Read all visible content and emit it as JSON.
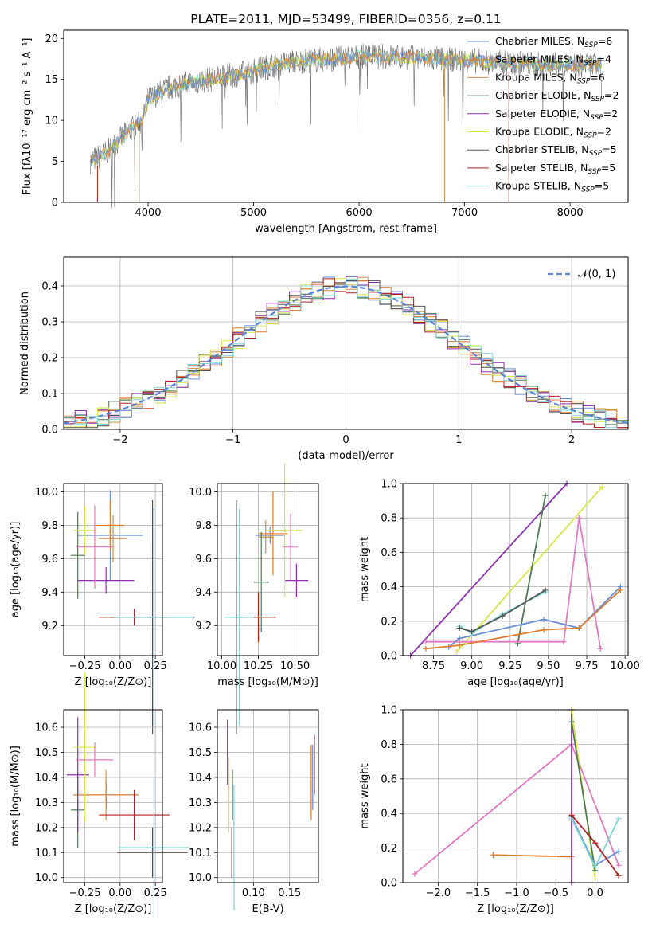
{
  "colors": {
    "chabrier_miles": "#6a8fd6",
    "salpeter_miles": "#e07b2a",
    "kroupa_miles": "#d08f45",
    "chabrier_elodie": "#4f7a55",
    "salpeter_elodie": "#8b2fb0",
    "kroupa_elodie": "#d6e84a",
    "chabrier_stelib": "#555555",
    "salpeter_stelib": "#b22222",
    "kroupa_stelib": "#7fd6d6",
    "pink": "#e377c2",
    "grid": "#b0b0b0",
    "normal_dash": "#5b84d4"
  },
  "chart_data": [
    {
      "id": "spectrum",
      "type": "line",
      "title": "PLATE=2011, MJD=53499, FIBERID=0356, z=0.11",
      "xlabel": "wavelength [Angstrom, rest frame]",
      "ylabel": "Flux [fλ10⁻¹⁷ erg cm⁻² s⁻¹ A⁻¹]",
      "xlim": [
        3200,
        8550
      ],
      "ylim": [
        0,
        21
      ],
      "xticks": [
        "4000",
        "5000",
        "6000",
        "7000",
        "8000"
      ],
      "yticks": [
        "0",
        "5",
        "10",
        "15",
        "20"
      ],
      "grid": false,
      "legend_position": "top-right",
      "legend": [
        "Chabrier MILES, N_SSP=6",
        "Salpeter MILES, N_SSP=4",
        "Kroupa MILES, N_SSP=6",
        "Chabrier ELODIE, N_SSP=2",
        "Salpeter ELODIE, N_SSP=2",
        "Kroupa ELODIE, N_SSP=2",
        "Chabrier STELIB, N_SSP=5",
        "Salpeter STELIB, N_SSP=5",
        "Kroupa STELIB, N_SSP=5"
      ],
      "continuum": {
        "x": [
          3450,
          3600,
          3800,
          3950,
          4000,
          4200,
          4400,
          4600,
          4800,
          5000,
          5200,
          5500,
          5800,
          6000,
          6300,
          6600,
          7000,
          7400,
          7800,
          8300
        ],
        "y": [
          5,
          6,
          8.5,
          10,
          12.5,
          14,
          14.6,
          15,
          15.5,
          16,
          16.8,
          17.3,
          17.5,
          17.8,
          17.8,
          17.6,
          17.3,
          17.0,
          16.8,
          16.7
        ]
      }
    },
    {
      "id": "residuals",
      "type": "line",
      "xlabel": "(data-model)/error",
      "ylabel": "Normed distribution",
      "xlim": [
        -2.5,
        2.5
      ],
      "ylim": [
        0,
        0.48
      ],
      "xticks": [
        "−2",
        "−1",
        "0",
        "1",
        "2"
      ],
      "yticks": [
        "0.0",
        "0.1",
        "0.2",
        "0.3",
        "0.4"
      ],
      "grid": true,
      "legend": "𝒩(0, 1)",
      "legend_position": "top-right"
    },
    {
      "id": "z_age",
      "type": "scatter",
      "xlabel": "Z [log₁₀(Z/Z⊙)]",
      "ylabel": "age  [log₁₀(age/yr)]",
      "xlim": [
        -0.4,
        0.3
      ],
      "ylim": [
        9.02,
        10.05
      ],
      "xticks": [
        "−0.25",
        "0.00",
        "0.25"
      ],
      "yticks": [
        "9.2",
        "9.4",
        "9.6",
        "9.8",
        "10.0"
      ],
      "grid": true,
      "series": [
        {
          "x": -0.07,
          "y": 9.74,
          "xerr": 0.23,
          "yerr": 0.27,
          "color_key": "chabrier_miles"
        },
        {
          "x": -0.07,
          "y": 9.8,
          "xerr": 0.1,
          "yerr": 0.15,
          "color_key": "salpeter_miles"
        },
        {
          "x": -0.05,
          "y": 9.72,
          "xerr": 0.1,
          "yerr": 0.14,
          "color_key": "kroupa_miles"
        },
        {
          "x": -0.3,
          "y": 9.62,
          "xerr": 0.05,
          "yerr": 0.26,
          "color_key": "chabrier_elodie"
        },
        {
          "x": -0.1,
          "y": 9.47,
          "xerr": 0.2,
          "yerr": 0.08,
          "color_key": "salpeter_elodie"
        },
        {
          "x": -0.25,
          "y": 9.77,
          "xerr": 0.08,
          "yerr": 0.15,
          "color_key": "kroupa_elodie"
        },
        {
          "x": 0.23,
          "y": 9.25,
          "xerr": 0.3,
          "yerr": 0.7,
          "color_key": "chabrier_stelib"
        },
        {
          "x": 0.1,
          "y": 9.25,
          "xerr": 0.25,
          "yerr": 0.05,
          "color_key": "salpeter_stelib"
        },
        {
          "x": 0.24,
          "y": 9.25,
          "xerr": 0.28,
          "yerr": 0.65,
          "color_key": "kroupa_stelib"
        },
        {
          "x": -0.18,
          "y": 9.67,
          "xerr": 0.13,
          "yerr": 0.25,
          "color_key": "pink"
        }
      ]
    },
    {
      "id": "mass_age",
      "type": "scatter",
      "xlabel": "mass [log₁₀(M/M⊙)]",
      "ylabel": "",
      "xlim": [
        9.97,
        10.66
      ],
      "ylim": [
        9.02,
        10.05
      ],
      "xticks": [
        "10.00",
        "10.25",
        "10.50"
      ],
      "yticks": [
        "9.2",
        "9.4",
        "9.6",
        "9.8",
        "10.0"
      ],
      "grid": true,
      "series": [
        {
          "x": 10.33,
          "y": 9.74,
          "xerr": 0.1,
          "yerr": 0.05,
          "color_key": "chabrier_miles"
        },
        {
          "x": 10.35,
          "y": 9.75,
          "xerr": 0.1,
          "yerr": 0.25,
          "color_key": "salpeter_miles"
        },
        {
          "x": 10.3,
          "y": 9.73,
          "xerr": 0.05,
          "yerr": 0.1,
          "color_key": "kroupa_miles"
        },
        {
          "x": 10.27,
          "y": 9.46,
          "xerr": 0.05,
          "yerr": 0.3,
          "color_key": "chabrier_elodie"
        },
        {
          "x": 10.51,
          "y": 9.47,
          "xerr": 0.08,
          "yerr": 0.1,
          "color_key": "salpeter_elodie"
        },
        {
          "x": 10.43,
          "y": 9.77,
          "xerr": 0.12,
          "yerr": 0.4,
          "color_key": "kroupa_elodie"
        },
        {
          "x": 10.1,
          "y": 9.25,
          "xerr": 0.05,
          "yerr": 0.7,
          "color_key": "chabrier_stelib"
        },
        {
          "x": 10.25,
          "y": 9.25,
          "xerr": 0.12,
          "yerr": 0.15,
          "color_key": "salpeter_stelib"
        },
        {
          "x": 10.12,
          "y": 9.25,
          "xerr": 0.1,
          "yerr": 0.65,
          "color_key": "kroupa_stelib"
        },
        {
          "x": 10.47,
          "y": 9.67,
          "xerr": 0.05,
          "yerr": 0.2,
          "color_key": "pink"
        }
      ]
    },
    {
      "id": "age_weight",
      "type": "line",
      "xlabel": "age  [log₁₀(age/yr)]",
      "ylabel": "mass weight",
      "xlim": [
        8.55,
        10.02
      ],
      "ylim": [
        0,
        1
      ],
      "xticks": [
        "8.75",
        "9.00",
        "9.25",
        "9.50",
        "9.75",
        "10.00"
      ],
      "yticks": [
        "0.0",
        "0.2",
        "0.4",
        "0.6",
        "0.8",
        "1.0"
      ],
      "grid": true,
      "series": [
        {
          "color_key": "salpeter_elodie",
          "x": [
            8.6,
            9.62
          ],
          "y": [
            0.0,
            1.0
          ]
        },
        {
          "color_key": "kroupa_elodie",
          "x": [
            8.9,
            9.85
          ],
          "y": [
            0.02,
            0.98
          ]
        },
        {
          "color_key": "chabrier_elodie",
          "x": [
            9.3,
            9.48
          ],
          "y": [
            0.07,
            0.93
          ]
        },
        {
          "color_key": "pink",
          "x": [
            8.7,
            9.6,
            9.7,
            9.84
          ],
          "y": [
            0.08,
            0.08,
            0.8,
            0.04
          ]
        },
        {
          "color_key": "chabrier_miles",
          "x": [
            8.85,
            8.92,
            9.47,
            9.7,
            9.97
          ],
          "y": [
            0.05,
            0.1,
            0.21,
            0.16,
            0.4
          ]
        },
        {
          "color_key": "salpeter_miles",
          "x": [
            8.7,
            8.92,
            9.47,
            9.7,
            9.97
          ],
          "y": [
            0.04,
            0.06,
            0.15,
            0.16,
            0.38
          ]
        },
        {
          "color_key": "kroupa_stelib",
          "x": [
            8.92,
            9.0,
            9.2,
            9.48
          ],
          "y": [
            0.17,
            0.13,
            0.24,
            0.37
          ]
        },
        {
          "color_key": "chabrier_stelib",
          "x": [
            8.92,
            9.0,
            9.2,
            9.48
          ],
          "y": [
            0.16,
            0.14,
            0.23,
            0.38
          ]
        }
      ]
    },
    {
      "id": "z_mass",
      "type": "scatter",
      "xlabel": "Z [log₁₀(Z/Z⊙)]",
      "ylabel": "mass [log₁₀(M/M⊙)]",
      "xlim": [
        -0.4,
        0.3
      ],
      "ylim": [
        9.98,
        10.67
      ],
      "xticks": [
        "−0.25",
        "0.00",
        "0.25"
      ],
      "yticks": [
        "10.0",
        "10.1",
        "10.2",
        "10.3",
        "10.4",
        "10.5",
        "10.6"
      ],
      "grid": true,
      "series": [
        {
          "x": -0.1,
          "y": 10.33,
          "xerr": 0.23,
          "yerr": 0.05,
          "color_key": "chabrier_miles"
        },
        {
          "x": -0.1,
          "y": 10.33,
          "xerr": 0.23,
          "yerr": 0.05,
          "color_key": "salpeter_miles"
        },
        {
          "x": -0.1,
          "y": 10.33,
          "xerr": 0.02,
          "yerr": 0.1,
          "color_key": "kroupa_miles"
        },
        {
          "x": -0.3,
          "y": 10.27,
          "xerr": 0.05,
          "yerr": 0.15,
          "color_key": "chabrier_elodie"
        },
        {
          "x": -0.3,
          "y": 10.41,
          "xerr": 0.08,
          "yerr": 0.23,
          "color_key": "salpeter_elodie"
        },
        {
          "x": -0.25,
          "y": 10.52,
          "xerr": 0.08,
          "yerr": 0.3,
          "color_key": "kroupa_elodie"
        },
        {
          "x": 0.23,
          "y": 10.1,
          "xerr": 0.25,
          "yerr": 0.1,
          "color_key": "chabrier_stelib"
        },
        {
          "x": 0.1,
          "y": 10.25,
          "xerr": 0.25,
          "yerr": 0.1,
          "color_key": "salpeter_stelib"
        },
        {
          "x": 0.24,
          "y": 10.12,
          "xerr": 0.25,
          "yerr": 0.28,
          "color_key": "kroupa_stelib"
        },
        {
          "x": -0.18,
          "y": 10.47,
          "xerr": 0.13,
          "yerr": 0.07,
          "color_key": "pink"
        }
      ]
    },
    {
      "id": "ebv_mass",
      "type": "scatter",
      "xlabel": "E(B-V)",
      "ylabel": "",
      "xlim": [
        0.05,
        0.19
      ],
      "ylim": [
        9.98,
        10.67
      ],
      "xticks": [
        "0.10",
        "0.15"
      ],
      "yticks": [
        "10.0",
        "10.1",
        "10.2",
        "10.3",
        "10.4",
        "10.5",
        "10.6"
      ],
      "grid": true,
      "series": [
        {
          "x": 0.064,
          "y": 10.5,
          "yerr": 0.13,
          "color_key": "salpeter_elodie"
        },
        {
          "x": 0.066,
          "y": 10.33,
          "yerr": 0.15,
          "color_key": "kroupa_elodie"
        },
        {
          "x": 0.07,
          "y": 10.1,
          "yerr": 0.1,
          "color_key": "chabrier_stelib"
        },
        {
          "x": 0.071,
          "y": 10.33,
          "yerr": 0.1,
          "color_key": "chabrier_elodie"
        },
        {
          "x": 0.073,
          "y": 10.12,
          "yerr": 0.25,
          "color_key": "kroupa_stelib"
        },
        {
          "x": 0.18,
          "y": 10.38,
          "yerr": 0.15,
          "color_key": "salpeter_miles"
        },
        {
          "x": 0.182,
          "y": 10.4,
          "yerr": 0.13,
          "color_key": "chabrier_miles"
        },
        {
          "x": 0.185,
          "y": 10.45,
          "yerr": 0.12,
          "color_key": "pink"
        }
      ]
    },
    {
      "id": "z_weight",
      "type": "line",
      "xlabel": "Z [log₁₀(Z/Z⊙)]",
      "ylabel": "mass weight",
      "xlim": [
        -2.45,
        0.42
      ],
      "ylim": [
        0,
        1
      ],
      "xticks": [
        "−2.0",
        "−1.5",
        "−1.0",
        "−0.5",
        "0.0"
      ],
      "yticks": [
        "0.0",
        "0.2",
        "0.4",
        "0.6",
        "0.8",
        "1.0"
      ],
      "grid": true,
      "series": [
        {
          "color_key": "pink",
          "x": [
            -2.3,
            -0.3,
            0.3
          ],
          "y": [
            0.05,
            0.8,
            0.1
          ]
        },
        {
          "color_key": "salpeter_miles",
          "x": [
            -1.3,
            -0.3
          ],
          "y": [
            0.16,
            0.15
          ]
        },
        {
          "color_key": "salpeter_elodie",
          "x": [
            -0.3,
            -0.3
          ],
          "y": [
            0.0,
            1.0
          ]
        },
        {
          "color_key": "kroupa_elodie",
          "x": [
            -0.3,
            0.0
          ],
          "y": [
            1.0,
            0.02
          ]
        },
        {
          "color_key": "chabrier_elodie",
          "x": [
            -0.3,
            0.0
          ],
          "y": [
            0.93,
            0.07
          ]
        },
        {
          "color_key": "chabrier_miles",
          "x": [
            -0.3,
            0.0,
            0.3
          ],
          "y": [
            0.38,
            0.1,
            0.18
          ]
        },
        {
          "color_key": "kroupa_stelib",
          "x": [
            -0.3,
            0.0,
            0.3
          ],
          "y": [
            0.37,
            0.09,
            0.37
          ]
        },
        {
          "color_key": "salpeter_stelib",
          "x": [
            -0.3,
            0.0,
            0.3
          ],
          "y": [
            0.39,
            0.23,
            0.04
          ]
        }
      ]
    }
  ]
}
